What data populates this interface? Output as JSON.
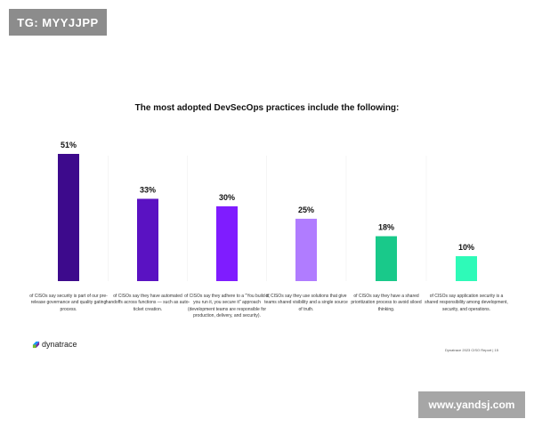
{
  "watermark_top": "TG: MYYJJPP",
  "watermark_bottom": "www.yandsj.com",
  "logo_text": "dynatrace",
  "footer": "Dynatrace 2023 CISO Report | 15",
  "chart_data": {
    "type": "bar",
    "title": "The most adopted DevSecOps practices include the following:",
    "ylim": [
      0,
      51
    ],
    "categories": [
      "of CISOs say security is part of our pre-release governance and quality gating process.",
      "of CISOs say they have automated handoffs across functions — such as auto-ticket creation.",
      "of CISOs say they adhere to a \"You build it, you run it, you secure it\" approach (development teams are responsible for production, delivery, and security).",
      "of CISOs say they use solutions that give teams shared visibility and a single source of truth.",
      "of CISOs say they have a shared prioritization process to avoid siloed thinking.",
      "of CISOs say application security is a shared responsibility among development, security, and operations."
    ],
    "values": [
      51,
      33,
      30,
      25,
      18,
      10
    ],
    "value_labels": [
      "51%",
      "33%",
      "30%",
      "25%",
      "18%",
      "10%"
    ],
    "colors": [
      "#3d0a8c",
      "#5a12c2",
      "#7f1cff",
      "#b07cff",
      "#19c98a",
      "#2efab8"
    ]
  }
}
